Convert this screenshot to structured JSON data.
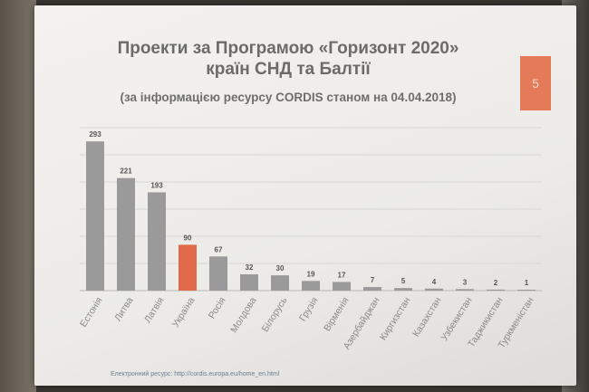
{
  "slide": {
    "title_line1": "Проекти за Програмою «Горизонт 2020»",
    "title_line2": "країн СНД та Балтії",
    "subtitle": "(за інформацією ресурсу CORDIS станом на 04.04.2018)",
    "slide_number": "5",
    "footnote": "Електронний ресурс: http://cordis.europa.eu/home_en.html"
  },
  "colors": {
    "bar_default": "#9a9a9a",
    "bar_highlight": "#e0694a",
    "accent": "#e47a58"
  },
  "chart_data": {
    "type": "bar",
    "categories": [
      "Естонія",
      "Литва",
      "Латвія",
      "Україна",
      "Росія",
      "Молдова",
      "Білорусь",
      "Грузія",
      "Вірменія",
      "Азербайджан",
      "Киргизстан",
      "Казахстан",
      "Узбекистан",
      "Таджикистан",
      "Туркменістан"
    ],
    "values": [
      293,
      221,
      193,
      90,
      67,
      32,
      30,
      19,
      17,
      7,
      5,
      4,
      3,
      2,
      1
    ],
    "value_labels": [
      "293",
      "221",
      "193",
      "90",
      "67",
      "32",
      "30",
      "19",
      "17",
      "7",
      "5",
      "4",
      "3",
      "2",
      "1"
    ],
    "highlight_index": 3,
    "ylim": [
      0,
      320
    ],
    "grid": true,
    "legend": "none"
  }
}
